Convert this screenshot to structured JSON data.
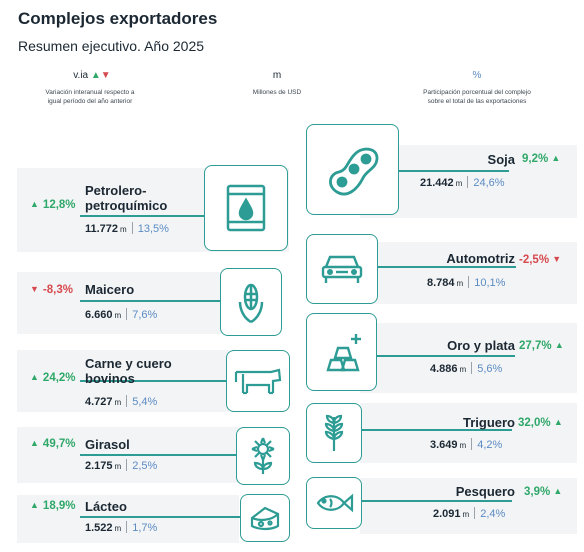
{
  "header": {
    "title": "Complejos exportadores",
    "subtitle": "Resumen ejecutivo. Año 2025"
  },
  "legend": {
    "var_symbol": "v.ia",
    "var_desc_1": "Variación interanual respecto a",
    "var_desc_2": "igual período del año anterior",
    "m_symbol": "m",
    "m_desc": "Millones de USD",
    "pct_symbol": "%",
    "pct_desc_1": "Participación porcentual del complejo",
    "pct_desc_2": "sobre el total de las exportaciones"
  },
  "colors": {
    "accent": "#2d9c94",
    "up": "#2fa86a",
    "down": "#d6494e",
    "share": "#5b8bc4",
    "card": "#f3f4f5"
  },
  "complexes_left": [
    {
      "name_1": "Petrolero-",
      "name_2": "petroquímico",
      "variation": "12,8%",
      "direction": "up",
      "value": "11.772",
      "unit": "m",
      "share": "13,5%",
      "icon": "oil-barrel-icon"
    },
    {
      "name_1": "Maicero",
      "name_2": "",
      "variation": "-8,3%",
      "direction": "down",
      "value": "6.660",
      "unit": "m",
      "share": "7,6%",
      "icon": "corn-icon"
    },
    {
      "name_1": "Carne y cuero",
      "name_2": "bovinos",
      "variation": "24,2%",
      "direction": "up",
      "value": "4.727",
      "unit": "m",
      "share": "5,4%",
      "icon": "cow-icon"
    },
    {
      "name_1": "Girasol",
      "name_2": "",
      "variation": "49,7%",
      "direction": "up",
      "value": "2.175",
      "unit": "m",
      "share": "2,5%",
      "icon": "sunflower-icon"
    },
    {
      "name_1": "Lácteo",
      "name_2": "",
      "variation": "18,9%",
      "direction": "up",
      "value": "1.522",
      "unit": "m",
      "share": "1,7%",
      "icon": "cheese-icon"
    }
  ],
  "complexes_right": [
    {
      "name": "Soja",
      "variation": "9,2%",
      "direction": "up",
      "value": "21.442",
      "unit": "m",
      "share": "24,6%",
      "icon": "soybean-icon"
    },
    {
      "name": "Automotriz",
      "variation": "-2,5%",
      "direction": "down",
      "value": "8.784",
      "unit": "m",
      "share": "10,1%",
      "icon": "car-icon"
    },
    {
      "name": "Oro y plata",
      "variation": "27,7%",
      "direction": "up",
      "value": "4.886",
      "unit": "m",
      "share": "5,6%",
      "icon": "gold-bars-icon"
    },
    {
      "name": "Triguero",
      "variation": "32,0%",
      "direction": "up",
      "value": "3.649",
      "unit": "m",
      "share": "4,2%",
      "icon": "wheat-icon"
    },
    {
      "name": "Pesquero",
      "variation": "3,9%",
      "direction": "up",
      "value": "2.091",
      "unit": "m",
      "share": "2,4%",
      "icon": "fish-icon"
    }
  ]
}
